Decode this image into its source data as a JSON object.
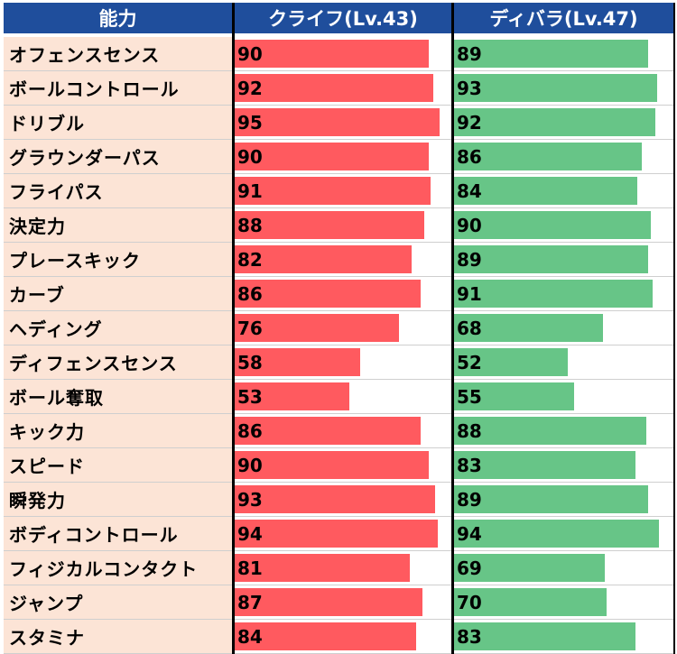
{
  "header": {
    "col_label": "能力",
    "col_a": "クライフ(Lv.43)",
    "col_b": "ディバラ(Lv.47)"
  },
  "colors": {
    "header_bg": "#1f4e9c",
    "label_bg": "#fce4d6",
    "bar_a": "#ff5a5f",
    "bar_b": "#67c587"
  },
  "chart_data": {
    "type": "table",
    "categories": [
      "オフェンスセンス",
      "ボールコントロール",
      "ドリブル",
      "グラウンダーパス",
      "フライパス",
      "決定力",
      "プレースキック",
      "カーブ",
      "ヘディング",
      "ディフェンスセンス",
      "ボール奪取",
      "キック力",
      "スピード",
      "瞬発力",
      "ボディコントロール",
      "フィジカルコンタクト",
      "ジャンプ",
      "スタミナ"
    ],
    "series": [
      {
        "name": "クライフ(Lv.43)",
        "values": [
          90,
          92,
          95,
          90,
          91,
          88,
          82,
          86,
          76,
          58,
          53,
          86,
          90,
          93,
          94,
          81,
          87,
          84
        ]
      },
      {
        "name": "ディバラ(Lv.47)",
        "values": [
          89,
          93,
          92,
          86,
          84,
          90,
          89,
          91,
          68,
          52,
          55,
          88,
          83,
          89,
          94,
          69,
          70,
          83
        ]
      }
    ],
    "xlim": [
      0,
      100
    ]
  }
}
